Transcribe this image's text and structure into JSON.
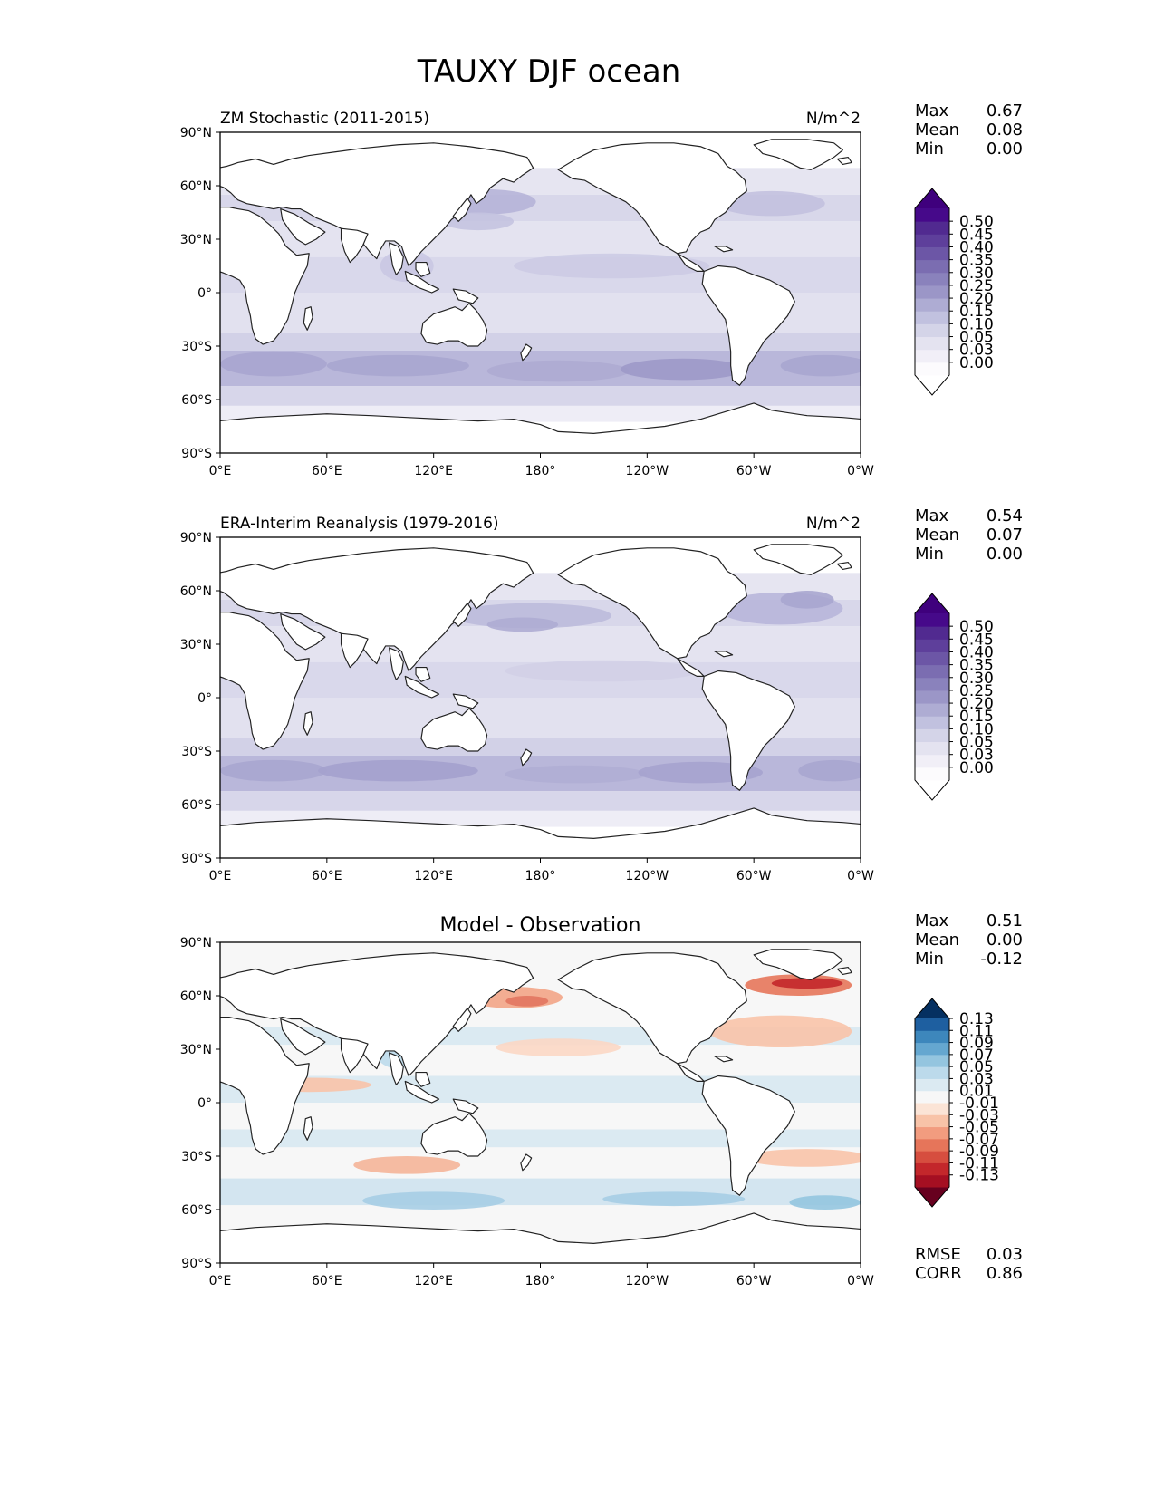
{
  "figure": {
    "title": "TAUXY DJF ocean"
  },
  "axes_labels": {
    "lat_ticks": [
      "90°N",
      "60°N",
      "30°N",
      "0°",
      "30°S",
      "60°S",
      "90°S"
    ],
    "lon_ticks": [
      "0°E",
      "60°E",
      "120°E",
      "180°",
      "120°W",
      "60°W",
      "0°W"
    ]
  },
  "panels": [
    {
      "name": "test",
      "left_title": "ZM Stochastic (2011-2015)",
      "center_title": "",
      "right_title": "N/m^2",
      "stats": {
        "max_label": "Max",
        "max": "0.67",
        "mean_label": "Mean",
        "mean": "0.08",
        "min_label": "Min",
        "min": "0.00"
      },
      "colorbar": {
        "levels": [
          "0.00",
          "0.03",
          "0.05",
          "0.10",
          "0.15",
          "0.20",
          "0.25",
          "0.30",
          "0.35",
          "0.40",
          "0.45",
          "0.50"
        ],
        "colors": [
          "#fcfbfd",
          "#f1eff7",
          "#e4e3f0",
          "#d4d4e8",
          "#c1c1df",
          "#aeacd3",
          "#9b96c7",
          "#8a82bc",
          "#7b6db1",
          "#6c56a6",
          "#5e3f9b",
          "#512a90",
          "#46098a"
        ],
        "under_color": "#ffffff",
        "over_color": "#3f007d"
      }
    },
    {
      "name": "reference",
      "left_title": "ERA-Interim Reanalysis (1979-2016)",
      "center_title": "",
      "right_title": "N/m^2",
      "stats": {
        "max_label": "Max",
        "max": "0.54",
        "mean_label": "Mean",
        "mean": "0.07",
        "min_label": "Min",
        "min": "0.00"
      },
      "colorbar": {
        "levels": [
          "0.00",
          "0.03",
          "0.05",
          "0.10",
          "0.15",
          "0.20",
          "0.25",
          "0.30",
          "0.35",
          "0.40",
          "0.45",
          "0.50"
        ],
        "colors": [
          "#fcfbfd",
          "#f1eff7",
          "#e4e3f0",
          "#d4d4e8",
          "#c1c1df",
          "#aeacd3",
          "#9b96c7",
          "#8a82bc",
          "#7b6db1",
          "#6c56a6",
          "#5e3f9b",
          "#512a90",
          "#46098a"
        ],
        "under_color": "#ffffff",
        "over_color": "#3f007d"
      }
    },
    {
      "name": "diff",
      "left_title": "",
      "center_title": "Model - Observation",
      "right_title": "",
      "stats": {
        "max_label": "Max",
        "max": "0.51",
        "mean_label": "Mean",
        "mean": "0.00",
        "min_label": "Min",
        "min": "-0.12"
      },
      "colorbar": {
        "levels": [
          "-0.13",
          "-0.11",
          "-0.09",
          "-0.07",
          "-0.05",
          "-0.03",
          "-0.01",
          "0.01",
          "0.03",
          "0.05",
          "0.07",
          "0.09",
          "0.11",
          "0.13"
        ],
        "colors": [
          "#a50f22",
          "#c3272b",
          "#d64e3f",
          "#e6755a",
          "#f29c7f",
          "#f8c3a8",
          "#fbe4d6",
          "#f7f7f7",
          "#dbeaf2",
          "#bcdaeb",
          "#94c5df",
          "#65a7d0",
          "#3d87bc",
          "#1e5fa0"
        ],
        "under_color": "#67001f",
        "over_color": "#053061"
      },
      "metrics": {
        "rmse_label": "RMSE",
        "rmse": "0.03",
        "corr_label": "CORR",
        "corr": "0.86"
      }
    }
  ]
}
